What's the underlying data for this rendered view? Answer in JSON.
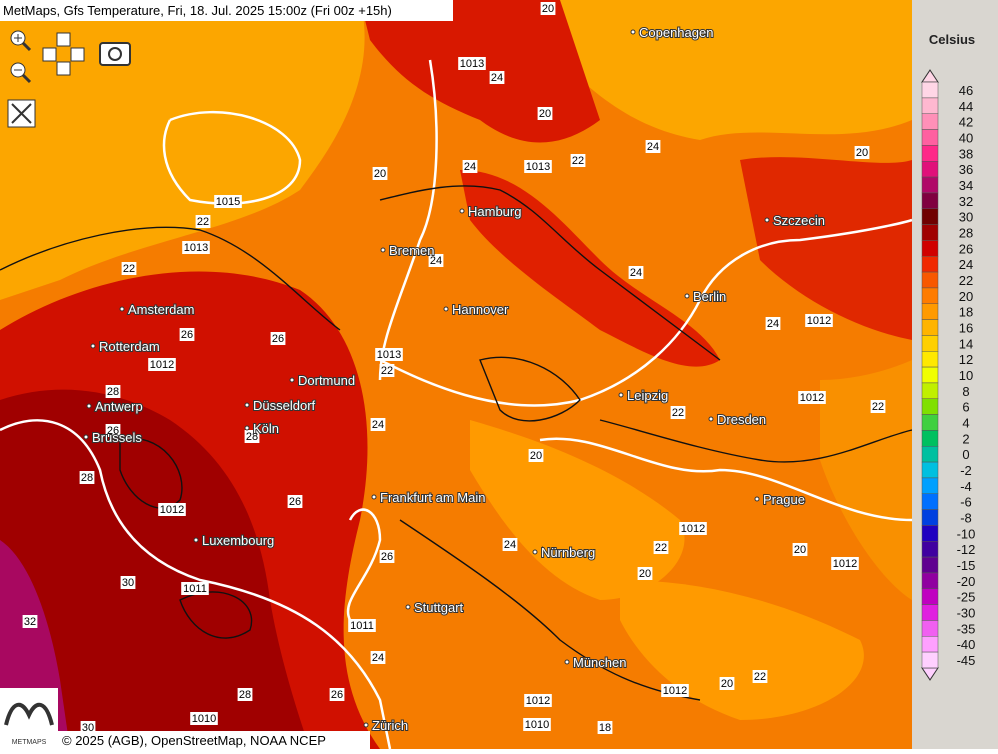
{
  "header": {
    "title": "MetMaps, Gfs Temperature, Fri, 18. Jul. 2025 15:00z (Fri 00z +15h)"
  },
  "legend": {
    "title": "Celsius",
    "items": [
      {
        "value": 46,
        "color": "#ffd6e6"
      },
      {
        "value": 44,
        "color": "#ffb8d0"
      },
      {
        "value": 42,
        "color": "#ff90b8"
      },
      {
        "value": 40,
        "color": "#ff60a0"
      },
      {
        "value": 38,
        "color": "#ff2888"
      },
      {
        "value": 36,
        "color": "#e0107a"
      },
      {
        "value": 34,
        "color": "#b00868"
      },
      {
        "value": 32,
        "color": "#800040"
      },
      {
        "value": 30,
        "color": "#700000"
      },
      {
        "value": 28,
        "color": "#a00000"
      },
      {
        "value": 26,
        "color": "#d00000"
      },
      {
        "value": 24,
        "color": "#f02800"
      },
      {
        "value": 22,
        "color": "#f85800"
      },
      {
        "value": 20,
        "color": "#ff7c00"
      },
      {
        "value": 18,
        "color": "#ff9a00"
      },
      {
        "value": 16,
        "color": "#ffb400"
      },
      {
        "value": 14,
        "color": "#ffd000"
      },
      {
        "value": 12,
        "color": "#ffe800"
      },
      {
        "value": 10,
        "color": "#f0ff00"
      },
      {
        "value": 8,
        "color": "#c0f000"
      },
      {
        "value": 6,
        "color": "#80e000"
      },
      {
        "value": 4,
        "color": "#40d040"
      },
      {
        "value": 2,
        "color": "#00c060"
      },
      {
        "value": 0,
        "color": "#00c0a0"
      },
      {
        "value": -2,
        "color": "#00c0e0"
      },
      {
        "value": -4,
        "color": "#00a0ff"
      },
      {
        "value": -6,
        "color": "#0070ff"
      },
      {
        "value": -8,
        "color": "#0040e0"
      },
      {
        "value": -10,
        "color": "#2000c0"
      },
      {
        "value": -12,
        "color": "#4000a0"
      },
      {
        "value": -15,
        "color": "#600090"
      },
      {
        "value": -20,
        "color": "#9000a0"
      },
      {
        "value": -25,
        "color": "#c000c0"
      },
      {
        "value": -30,
        "color": "#e020e0"
      },
      {
        "value": -35,
        "color": "#f060f0"
      },
      {
        "value": -40,
        "color": "#ffa0ff"
      },
      {
        "value": -45,
        "color": "#ffd0ff"
      }
    ]
  },
  "cities": [
    "Copenhagen",
    "Hamburg",
    "Szczecin",
    "Bremen",
    "Berlin",
    "Amsterdam",
    "Hannover",
    "Rotterdam",
    "Dortmund",
    "Leipzig",
    "Antwerp",
    "Düsseldorf",
    "Dresden",
    "Brussels",
    "Köln",
    "Prague",
    "Frankfurt am Main",
    "Luxembourg",
    "Nürnberg",
    "Stuttgart",
    "München",
    "Zürich"
  ],
  "contour_labels": [
    20,
    1013,
    24,
    20,
    22,
    24,
    1013,
    20,
    24,
    20,
    1015,
    22,
    1013,
    22,
    24,
    26,
    24,
    1012,
    22,
    26,
    1013,
    24,
    1012,
    28,
    26,
    22,
    22,
    28,
    24,
    20,
    28,
    1012,
    26,
    24,
    20,
    22,
    1012,
    1012,
    1012,
    22,
    26,
    30,
    1011,
    32,
    1011,
    24,
    20,
    1012,
    28,
    26,
    1010,
    1012,
    20,
    30,
    1010,
    18
  ],
  "attribution": "© 2025 (AGB), OpenStreetMap, NOAA NCEP",
  "logo": "METMAPS"
}
